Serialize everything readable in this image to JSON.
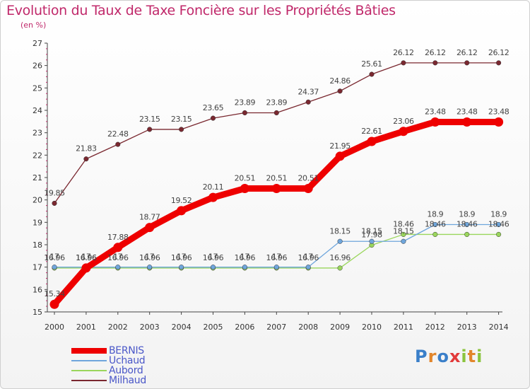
{
  "title": "Evolution du Taux de Taxe Foncière sur les Propriétés Bâties",
  "subtitle": "(en %)",
  "logo": {
    "text": "Proxiti",
    "letter_colors": [
      "#3a7fc9",
      "#e2862b",
      "#3a7fc9",
      "#e23a3a",
      "#8bc43e",
      "#e2862b",
      "#8bc43e"
    ]
  },
  "chart_data": {
    "type": "line",
    "title": "Evolution du Taux de Taxe Foncière sur les Propriétés Bâties",
    "ylabel": "(en %)",
    "xlabel": "",
    "x": [
      "2000",
      "2001",
      "2002",
      "2003",
      "2004",
      "2005",
      "2006",
      "2007",
      "2008",
      "2009",
      "2010",
      "2011",
      "2012",
      "2013",
      "2014"
    ],
    "yticks": [
      15,
      16,
      17,
      18,
      19,
      20,
      21,
      22,
      23,
      24,
      25,
      26,
      27
    ],
    "ylim": [
      15,
      27
    ],
    "grid": false,
    "series": [
      {
        "name": "Milhaud",
        "color": "#7a2830",
        "values": [
          19.85,
          21.83,
          22.48,
          23.15,
          23.15,
          23.65,
          23.89,
          23.89,
          24.37,
          24.86,
          25.61,
          26.12,
          26.12,
          26.12,
          26.12
        ],
        "labels": [
          "19.85",
          "21.83",
          "22.48",
          "23.15",
          "23.15",
          "23.65",
          "23.89",
          "23.89",
          "24.37",
          "24.86",
          "25.61",
          "26.12",
          "26.12",
          "26.12",
          "26.12"
        ]
      },
      {
        "name": "Aubord",
        "color": "#9ad65c",
        "values": [
          16.96,
          16.96,
          16.96,
          16.96,
          16.96,
          16.96,
          16.96,
          16.96,
          16.96,
          16.96,
          17.98,
          18.46,
          18.46,
          18.46,
          18.46
        ],
        "labels": [
          "16.96",
          "16.96",
          "16.96",
          "16.96",
          "16.96",
          "16.96",
          "16.96",
          "16.96",
          "16.96",
          "16.96",
          "17.98",
          "18.46",
          "18.46",
          "18.46",
          "18.46"
        ]
      },
      {
        "name": "Uchaud",
        "color": "#6fa6dc",
        "values": [
          17,
          17,
          17,
          17,
          17,
          17,
          17,
          17,
          17,
          18.15,
          18.15,
          18.15,
          18.9,
          18.9,
          18.9
        ],
        "labels": [
          "17",
          "17",
          "17",
          "17",
          "17",
          "17",
          "17",
          "17",
          "17",
          "18.15",
          "18.15",
          "18.15",
          "18.9",
          "18.9",
          "18.9"
        ]
      },
      {
        "name": "BERNIS",
        "color": "#ee0000",
        "values": [
          15.34,
          16.96,
          17.88,
          18.77,
          19.52,
          20.11,
          20.51,
          20.51,
          20.51,
          21.95,
          22.61,
          23.06,
          23.48,
          23.48,
          23.48
        ],
        "labels": [
          "15.34",
          "16.96",
          "17.88",
          "18.77",
          "19.52",
          "20.11",
          "20.51",
          "20.51",
          "20.51",
          "21.95",
          "22.61",
          "23.06",
          "23.48",
          "23.48",
          "23.48"
        ]
      }
    ],
    "legend": [
      "BERNIS",
      "Uchaud",
      "Aubord",
      "Milhaud"
    ]
  }
}
